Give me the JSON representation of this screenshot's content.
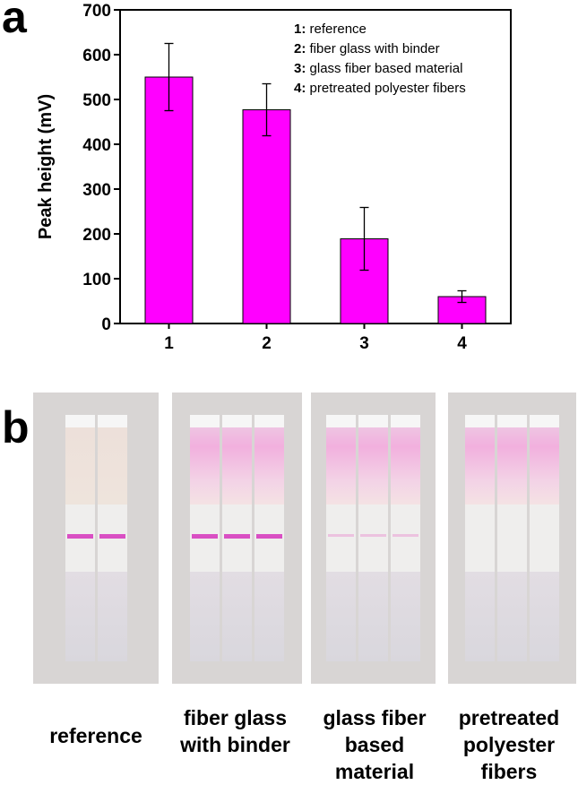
{
  "panel_labels": {
    "a": "a",
    "b": "b"
  },
  "chart_data": {
    "type": "bar",
    "categories": [
      "1",
      "2",
      "3",
      "4"
    ],
    "values": [
      550,
      477,
      189,
      60
    ],
    "errors": [
      75,
      58,
      70,
      13
    ],
    "ylabel": "Peak height (mV)",
    "xlabel": "",
    "ylim": [
      0,
      700
    ],
    "yticks": [
      0,
      100,
      200,
      300,
      400,
      500,
      600,
      700
    ],
    "bar_color": "#ff00ff",
    "legend": [
      {
        "key": "1:",
        "text": "reference"
      },
      {
        "key": "2:",
        "text": "fiber glass with binder"
      },
      {
        "key": "3:",
        "text": "glass fiber based material"
      },
      {
        "key": "4:",
        "text": "pretreated polyester fibers"
      }
    ],
    "legend_position": "top-right"
  },
  "photos": [
    {
      "caption": "reference",
      "strips": 2,
      "test_line": "strong",
      "pad_tint": "faint"
    },
    {
      "caption": "fiber glass\nwith binder",
      "strips": 3,
      "test_line": "strong",
      "pad_tint": "pink"
    },
    {
      "caption": "glass fiber\nbased\nmaterial",
      "strips": 3,
      "test_line": "faint",
      "pad_tint": "pink"
    },
    {
      "caption": "pretreated\npolyester\nfibers",
      "strips": 3,
      "test_line": "none",
      "pad_tint": "pink"
    }
  ]
}
